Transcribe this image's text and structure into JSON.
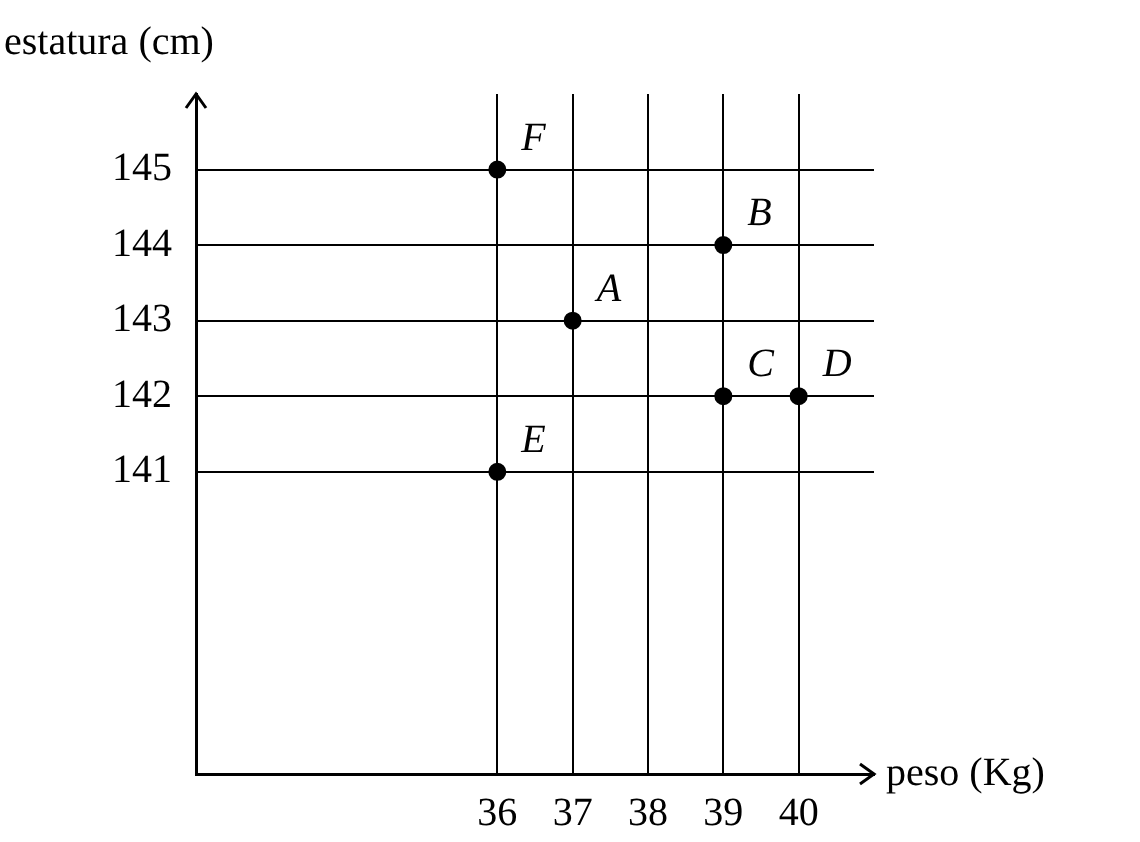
{
  "chart_data": {
    "type": "scatter",
    "xlabel": "peso (Kg)",
    "ylabel": "estatura (cm)",
    "x": [
      37,
      39,
      39,
      40,
      36,
      36
    ],
    "series": [
      {
        "color": "#000000",
        "values": [
          143,
          144,
          142,
          142,
          141,
          145
        ]
      }
    ],
    "xlim": [
      32,
      41
    ],
    "ylim": [
      137,
      146
    ],
    "xticks": [
      36,
      37,
      38,
      39,
      40
    ],
    "yticks": [
      141,
      142,
      143,
      144,
      145
    ],
    "grid": true,
    "legend": false,
    "marker": "circle",
    "annotations": [
      {
        "text": "A",
        "x": 37,
        "y": 143
      },
      {
        "text": "B",
        "x": 39,
        "y": 144
      },
      {
        "text": "C",
        "x": 39,
        "y": 142
      },
      {
        "text": "D",
        "x": 40,
        "y": 142
      },
      {
        "text": "E",
        "x": 36,
        "y": 141
      },
      {
        "text": "F",
        "x": 36,
        "y": 145
      }
    ]
  }
}
